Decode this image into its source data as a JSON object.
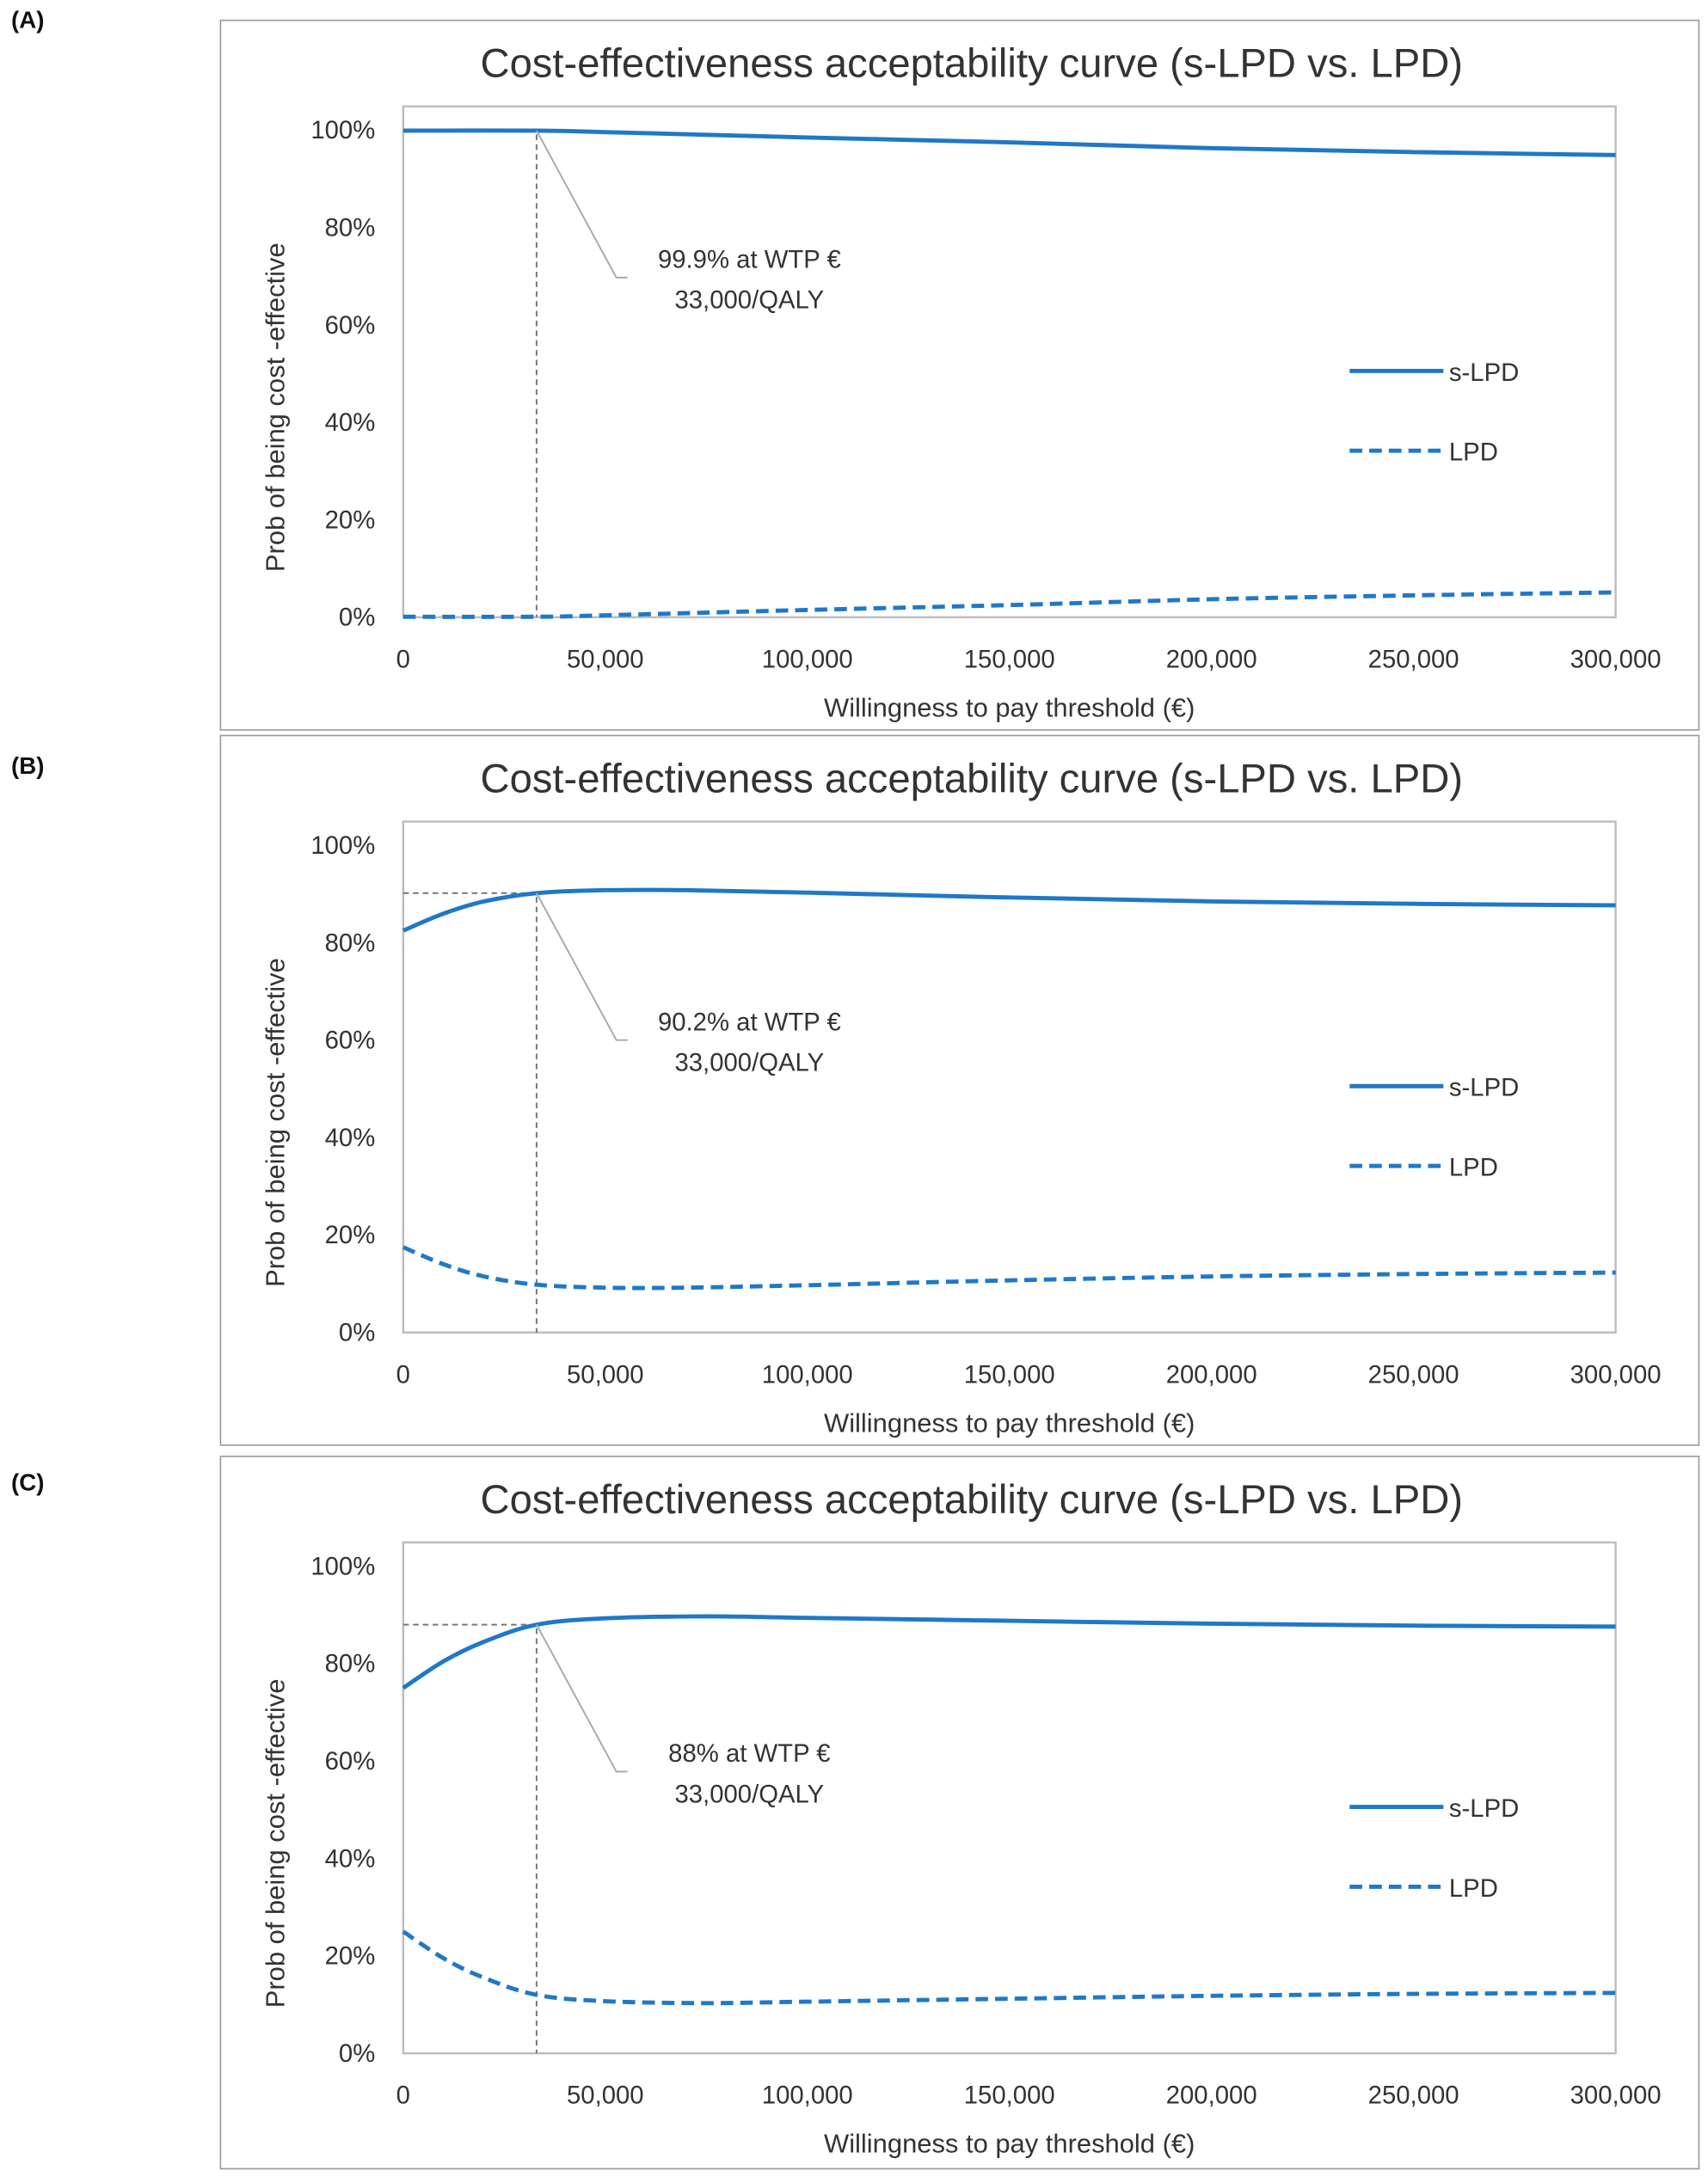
{
  "panel_labels": [
    "(A)",
    "(B)",
    "(C)"
  ],
  "chart_data": [
    {
      "type": "line",
      "title": "Cost-effectiveness acceptability curve (s-LPD vs. LPD)",
      "xlabel": "Willingness to pay threshold (€)",
      "ylabel": "Prob of being cost -effective",
      "xlim": [
        0,
        300000
      ],
      "ylim": [
        0,
        100
      ],
      "xticks": [
        "0",
        "50,000",
        "100,000",
        "150,000",
        "200,000",
        "250,000",
        "300,000"
      ],
      "yticks": [
        "0%",
        "20%",
        "40%",
        "60%",
        "80%",
        "100%"
      ],
      "legend": [
        "s-LPD",
        "LPD"
      ],
      "legend_position": "right",
      "color": "#1f78c8",
      "x": [
        0,
        33000,
        50000,
        100000,
        150000,
        200000,
        250000,
        300000
      ],
      "series": [
        {
          "name": "s-LPD",
          "style": "solid",
          "values": [
            99.9,
            99.9,
            99.6,
            98.5,
            97.5,
            96.3,
            95.5,
            94.9
          ]
        },
        {
          "name": "LPD",
          "style": "dashed",
          "values": [
            0.1,
            0.1,
            0.4,
            1.5,
            2.5,
            3.7,
            4.5,
            5.1
          ]
        }
      ],
      "annotation": {
        "x": 33000,
        "y": 99.9,
        "lines": [
          "99.9% at WTP €",
          "33,000/QALY"
        ]
      }
    },
    {
      "type": "line",
      "title": "Cost-effectiveness acceptability curve (s-LPD vs. LPD)",
      "xlabel": "Willingness to pay threshold (€)",
      "ylabel": "Prob of being cost -effective",
      "xlim": [
        0,
        300000
      ],
      "ylim": [
        0,
        100
      ],
      "xticks": [
        "0",
        "50,000",
        "100,000",
        "150,000",
        "200,000",
        "250,000",
        "300,000"
      ],
      "yticks": [
        "0%",
        "20%",
        "40%",
        "60%",
        "80%",
        "100%"
      ],
      "legend": [
        "s-LPD",
        "LPD"
      ],
      "legend_position": "right",
      "color": "#1f78c8",
      "x": [
        0,
        10000,
        20000,
        33000,
        50000,
        70000,
        100000,
        150000,
        200000,
        250000,
        300000
      ],
      "series": [
        {
          "name": "s-LPD",
          "style": "solid",
          "values": [
            82.5,
            86.0,
            88.5,
            90.2,
            90.8,
            90.8,
            90.3,
            89.3,
            88.5,
            88.0,
            87.7
          ]
        },
        {
          "name": "LPD",
          "style": "dashed",
          "values": [
            17.5,
            14.0,
            11.5,
            9.8,
            9.2,
            9.2,
            9.7,
            10.7,
            11.5,
            12.0,
            12.3
          ]
        }
      ],
      "annotation": {
        "x": 33000,
        "y": 90.2,
        "lines": [
          "90.2% at WTP €",
          "33,000/QALY"
        ]
      }
    },
    {
      "type": "line",
      "title": "Cost-effectiveness acceptability curve (s-LPD vs. LPD)",
      "xlabel": "Willingness to pay threshold (€)",
      "ylabel": "Prob of being cost -effective",
      "xlim": [
        0,
        300000
      ],
      "ylim": [
        0,
        100
      ],
      "xticks": [
        "0",
        "50,000",
        "100,000",
        "150,000",
        "200,000",
        "250,000",
        "300,000"
      ],
      "yticks": [
        "0%",
        "20%",
        "40%",
        "60%",
        "80%",
        "100%"
      ],
      "legend": [
        "s-LPD",
        "LPD"
      ],
      "legend_position": "right",
      "color": "#1f78c8",
      "x": [
        0,
        10000,
        20000,
        33000,
        50000,
        75000,
        100000,
        150000,
        200000,
        250000,
        300000
      ],
      "series": [
        {
          "name": "s-LPD",
          "style": "solid",
          "values": [
            75.0,
            80.5,
            84.5,
            88.0,
            89.3,
            89.7,
            89.4,
            88.8,
            88.2,
            87.8,
            87.6
          ]
        },
        {
          "name": "LPD",
          "style": "dashed",
          "values": [
            25.0,
            19.5,
            15.5,
            12.0,
            10.7,
            10.3,
            10.6,
            11.2,
            11.8,
            12.2,
            12.4
          ]
        }
      ],
      "annotation": {
        "x": 33000,
        "y": 88,
        "lines": [
          "88% at WTP €",
          "33,000/QALY"
        ]
      }
    }
  ]
}
